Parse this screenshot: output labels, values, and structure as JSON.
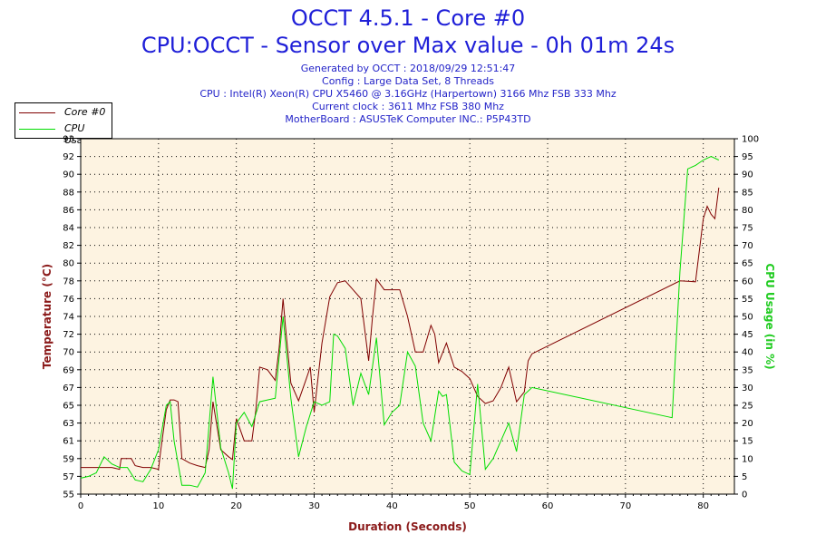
{
  "header": {
    "title": "OCCT 4.5.1 - Core #0",
    "subtitle": "CPU:OCCT - Sensor over Max value - 0h 01m 24s",
    "info": [
      "Generated by OCCT : 2018/09/29 12:51:47",
      "Config : Large Data Set, 8 Threads",
      "CPU : Intel(R) Xeon(R) CPU X5460 @ 3.16GHz (Harpertown) 3166 Mhz FSB 333 Mhz",
      "Current clock : 3611 Mhz FSB 380 Mhz",
      "MotherBoard : ASUSTeK Computer INC.: P5P43TD"
    ]
  },
  "legend": {
    "items": [
      {
        "label": "Core #0",
        "color": "#800000"
      },
      {
        "label": "CPU Usage",
        "color": "#00dd00"
      }
    ],
    "position": "top-left"
  },
  "chart_data": {
    "type": "line",
    "xlabel": "Duration (Seconds)",
    "ylabel_left": "Temperature (°C)",
    "ylabel_right": "CPU Usage (in %)",
    "xlim": [
      0,
      84
    ],
    "ylim_left": [
      55,
      95
    ],
    "ylim_right": [
      0,
      100
    ],
    "x_ticks": [
      "0",
      "10",
      "20",
      "30",
      "40",
      "50",
      "60",
      "70",
      "80"
    ],
    "y_ticks_left": [
      "55",
      "57",
      "59",
      "61",
      "63",
      "65",
      "67",
      "69",
      "70",
      "72",
      "74",
      "76",
      "78",
      "80",
      "82",
      "84",
      "86",
      "88",
      "90",
      "92",
      "93"
    ],
    "y_ticks_right": [
      "0",
      "5",
      "10",
      "15",
      "20",
      "25",
      "30",
      "35",
      "40",
      "45",
      "50",
      "55",
      "60",
      "65",
      "70",
      "75",
      "80",
      "85",
      "90",
      "95",
      "100"
    ],
    "grid": true,
    "background": "#fdf3e1",
    "series": [
      {
        "name": "Core #0",
        "axis": "left",
        "color": "#800000",
        "points": [
          [
            0,
            58
          ],
          [
            1,
            58
          ],
          [
            2,
            58
          ],
          [
            3,
            58
          ],
          [
            4,
            58
          ],
          [
            5,
            57.8
          ],
          [
            5.2,
            59
          ],
          [
            6,
            59
          ],
          [
            6.5,
            59
          ],
          [
            7,
            58.2
          ],
          [
            8,
            58
          ],
          [
            9,
            58
          ],
          [
            10,
            57.8
          ],
          [
            10.3,
            60
          ],
          [
            11,
            64.5
          ],
          [
            11.5,
            65.6
          ],
          [
            12,
            65.6
          ],
          [
            12.5,
            65.4
          ],
          [
            13,
            59
          ],
          [
            14,
            58.5
          ],
          [
            15,
            58.2
          ],
          [
            16,
            58
          ],
          [
            16.5,
            60
          ],
          [
            17,
            65.4
          ],
          [
            18,
            60
          ],
          [
            19,
            59.2
          ],
          [
            19.5,
            58.9
          ],
          [
            20,
            63.5
          ],
          [
            21,
            61
          ],
          [
            22,
            61
          ],
          [
            22.5,
            64.4
          ],
          [
            23,
            69.3
          ],
          [
            24,
            69
          ],
          [
            25,
            67.8
          ],
          [
            25.5,
            71.5
          ],
          [
            26,
            77
          ],
          [
            26.3,
            74
          ],
          [
            27,
            67.5
          ],
          [
            28,
            65.5
          ],
          [
            29,
            68
          ],
          [
            29.5,
            69.3
          ],
          [
            30,
            64.2
          ],
          [
            31,
            72
          ],
          [
            32,
            77.2
          ],
          [
            33,
            78.8
          ],
          [
            34,
            79
          ],
          [
            35,
            78
          ],
          [
            36,
            77
          ],
          [
            37,
            70
          ],
          [
            37.5,
            75
          ],
          [
            38,
            79.2
          ],
          [
            39,
            78
          ],
          [
            40,
            78
          ],
          [
            41,
            78
          ],
          [
            42,
            75
          ],
          [
            43,
            71
          ],
          [
            44,
            71
          ],
          [
            45,
            74
          ],
          [
            45.5,
            73
          ],
          [
            46,
            69.8
          ],
          [
            47,
            72
          ],
          [
            48,
            69.3
          ],
          [
            49,
            68.8
          ],
          [
            50,
            68
          ],
          [
            51,
            66
          ],
          [
            52,
            65.2
          ],
          [
            53,
            65.5
          ],
          [
            54,
            67
          ],
          [
            55,
            69.3
          ],
          [
            56,
            65.4
          ],
          [
            57,
            66.5
          ],
          [
            57.5,
            70
          ],
          [
            58,
            70.8
          ],
          [
            77,
            79
          ],
          [
            79,
            78.9
          ],
          [
            80,
            86
          ],
          [
            80.5,
            87.4
          ],
          [
            81,
            86.5
          ],
          [
            81.5,
            86
          ],
          [
            82,
            89.5
          ]
        ]
      },
      {
        "name": "CPU Usage",
        "axis": "right",
        "color": "#00dd00",
        "points": [
          [
            0,
            4.5
          ],
          [
            1,
            5
          ],
          [
            2,
            6
          ],
          [
            3,
            10.5
          ],
          [
            4,
            8.5
          ],
          [
            5,
            7.5
          ],
          [
            6,
            7.5
          ],
          [
            7,
            4
          ],
          [
            8,
            3.5
          ],
          [
            9,
            7
          ],
          [
            10,
            12.5
          ],
          [
            11,
            25
          ],
          [
            11.5,
            26
          ],
          [
            12,
            15
          ],
          [
            13,
            2.5
          ],
          [
            14,
            2.5
          ],
          [
            15,
            2
          ],
          [
            16,
            6
          ],
          [
            17,
            33
          ],
          [
            18,
            13
          ],
          [
            19,
            6
          ],
          [
            19.5,
            1.5
          ],
          [
            20,
            20
          ],
          [
            21,
            23
          ],
          [
            22,
            19
          ],
          [
            23,
            26
          ],
          [
            24,
            26.5
          ],
          [
            25,
            27
          ],
          [
            26,
            50
          ],
          [
            27,
            27
          ],
          [
            28,
            10.5
          ],
          [
            29,
            19
          ],
          [
            30,
            26
          ],
          [
            31,
            25
          ],
          [
            32,
            26
          ],
          [
            32.5,
            45
          ],
          [
            33,
            44.5
          ],
          [
            34,
            41
          ],
          [
            35,
            25
          ],
          [
            36,
            34
          ],
          [
            37,
            28
          ],
          [
            38,
            44
          ],
          [
            39,
            19.5
          ],
          [
            40,
            23
          ],
          [
            41,
            25
          ],
          [
            42,
            40
          ],
          [
            43,
            36
          ],
          [
            44,
            20
          ],
          [
            45,
            15
          ],
          [
            46,
            29
          ],
          [
            46.5,
            27.5
          ],
          [
            47,
            28
          ],
          [
            48,
            9
          ],
          [
            49,
            6.5
          ],
          [
            50,
            5.5
          ],
          [
            51,
            31
          ],
          [
            52,
            7
          ],
          [
            53,
            10
          ],
          [
            54,
            15
          ],
          [
            55,
            20
          ],
          [
            56,
            12
          ],
          [
            57,
            28
          ],
          [
            58,
            30
          ],
          [
            76,
            21.5
          ],
          [
            77,
            62.5
          ],
          [
            78,
            91.5
          ],
          [
            79,
            92.5
          ],
          [
            80,
            94
          ],
          [
            81,
            95
          ],
          [
            82,
            94
          ]
        ]
      }
    ]
  }
}
